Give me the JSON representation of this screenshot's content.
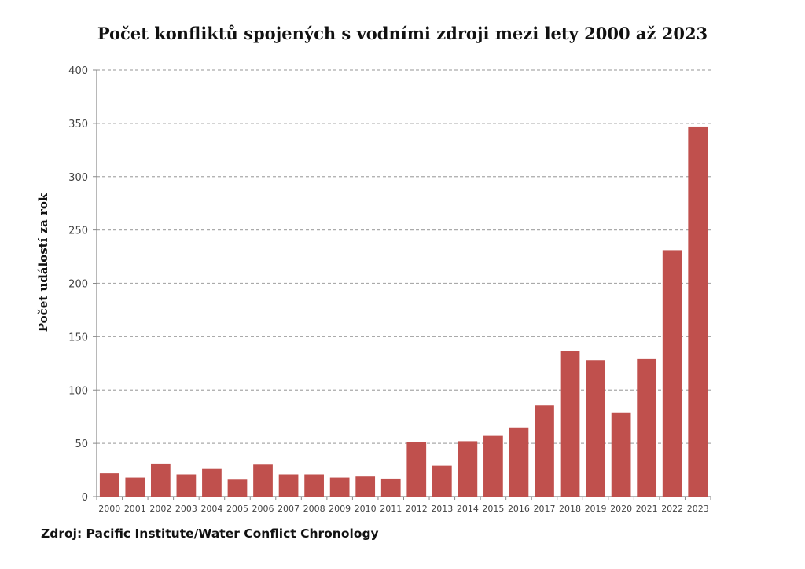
{
  "chart_data": {
    "type": "bar",
    "title": "Počet konfliktů spojených s vodními zdroji mezi lety 2000 až 2023",
    "xlabel": "",
    "ylabel": "Počet událostí za rok",
    "ylim": [
      0,
      400
    ],
    "yticks": [
      0,
      50,
      100,
      150,
      200,
      250,
      300,
      350,
      400
    ],
    "grid": true,
    "categories": [
      "2000",
      "2001",
      "2002",
      "2003",
      "2004",
      "2005",
      "2006",
      "2007",
      "2008",
      "2009",
      "2010",
      "2011",
      "2012",
      "2013",
      "2014",
      "2015",
      "2016",
      "2017",
      "2018",
      "2019",
      "2020",
      "2021",
      "2022",
      "2023"
    ],
    "values": [
      22,
      18,
      31,
      21,
      26,
      16,
      30,
      21,
      21,
      18,
      19,
      17,
      51,
      29,
      52,
      57,
      65,
      86,
      137,
      128,
      79,
      129,
      231,
      347
    ],
    "bar_color": "#c0504d",
    "source": "Zdroj: Pacific Institute/Water Conflict Chronology"
  }
}
